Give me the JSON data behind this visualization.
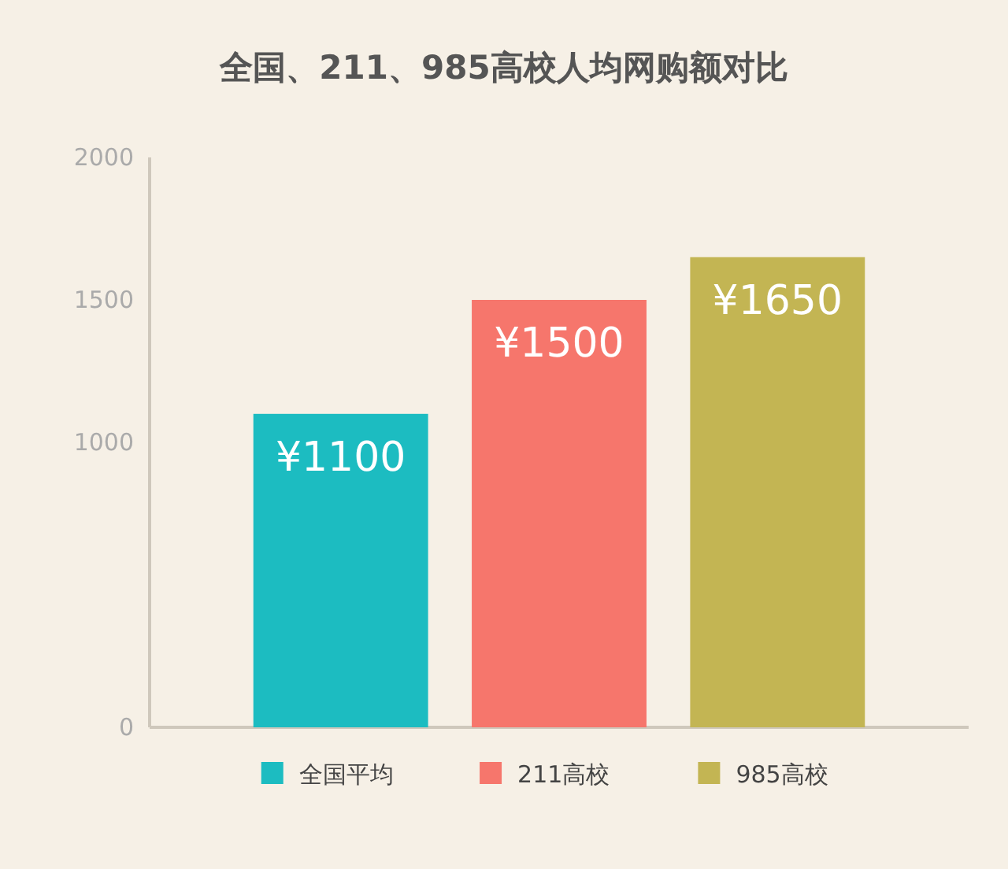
{
  "chart_data": {
    "type": "bar",
    "title": "全国、211、985高校人均网购额对比",
    "categories": [
      null
    ],
    "series": [
      {
        "name": "全国平均",
        "color": "#1cbcc1",
        "values": [
          1100
        ],
        "value_labels": [
          "¥1100"
        ]
      },
      {
        "name": "211高校",
        "color": "#f6766c",
        "values": [
          1500
        ],
        "value_labels": [
          "¥1500"
        ]
      },
      {
        "name": "985高校",
        "color": "#c3b553",
        "values": [
          1650
        ],
        "value_labels": [
          "¥1650"
        ]
      }
    ],
    "ylim": [
      0,
      2000
    ],
    "yticks": [
      0,
      1000,
      1500,
      2000
    ],
    "tick_labels": "y",
    "legend": "bottom",
    "grid": false
  }
}
